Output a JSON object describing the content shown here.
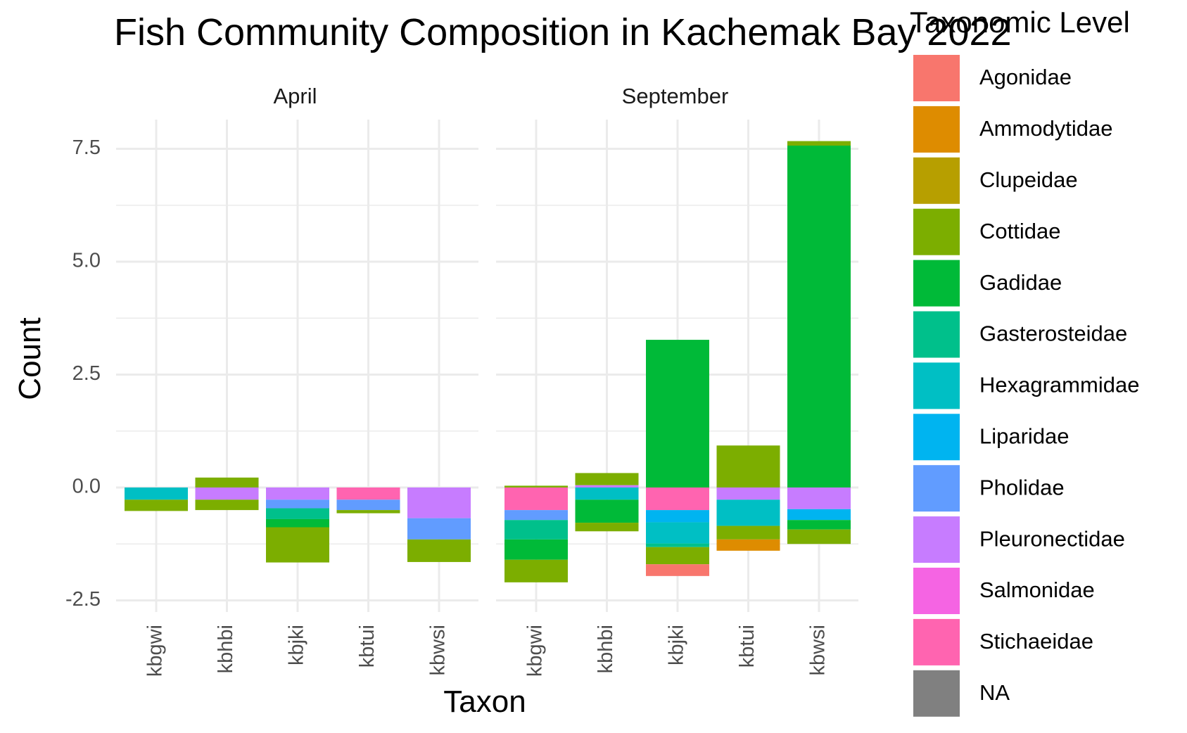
{
  "chart_data": {
    "type": "bar",
    "stacked": true,
    "title": "Fish Community Composition in Kachemak Bay 2022",
    "xlabel": "Taxon",
    "ylabel": "Count",
    "ylim": [
      -2.6,
      8.2
    ],
    "yticks": [
      "-2.5",
      "0.0",
      "2.5",
      "5.0",
      "7.5"
    ],
    "ytick_values": [
      -2.5,
      0,
      2.5,
      5,
      7.5
    ],
    "grid": true,
    "legend": {
      "title": "Taxonomic Level",
      "position": "right"
    },
    "categories": [
      "kbgwi",
      "kbhbi",
      "kbjki",
      "kbtui",
      "kbwsi"
    ],
    "families": [
      {
        "name": "Agonidae",
        "color": "#F8766D"
      },
      {
        "name": "Ammodytidae",
        "color": "#DE8C00"
      },
      {
        "name": "Clupeidae",
        "color": "#B79F00"
      },
      {
        "name": "Cottidae",
        "color": "#7CAE00"
      },
      {
        "name": "Gadidae",
        "color": "#00BA38"
      },
      {
        "name": "Gasterosteidae",
        "color": "#00C08B"
      },
      {
        "name": "Hexagrammidae",
        "color": "#00BFC4"
      },
      {
        "name": "Liparidae",
        "color": "#00B4F0"
      },
      {
        "name": "Pholidae",
        "color": "#619CFF"
      },
      {
        "name": "Pleuronectidae",
        "color": "#C77CFF"
      },
      {
        "name": "Salmonidae",
        "color": "#F564E3"
      },
      {
        "name": "Stichaeidae",
        "color": "#FF64B0"
      },
      {
        "name": "NA",
        "color": "#808080"
      }
    ],
    "panels": [
      {
        "label": "April",
        "bars": [
          {
            "category": "kbgwi",
            "segments": [
              {
                "family": "Hexagrammidae",
                "from": 0,
                "to": -0.27
              },
              {
                "family": "Cottidae",
                "from": -0.27,
                "to": -0.52
              }
            ]
          },
          {
            "category": "kbhbi",
            "segments": [
              {
                "family": "Cottidae",
                "from": 0,
                "to": 0.22
              },
              {
                "family": "Pleuronectidae",
                "from": 0,
                "to": -0.27
              },
              {
                "family": "Cottidae",
                "from": -0.27,
                "to": -0.5
              }
            ]
          },
          {
            "category": "kbjki",
            "segments": [
              {
                "family": "Pleuronectidae",
                "from": 0,
                "to": -0.27
              },
              {
                "family": "Pholidae",
                "from": -0.27,
                "to": -0.46
              },
              {
                "family": "Gasterosteidae",
                "from": -0.46,
                "to": -0.7
              },
              {
                "family": "Gadidae",
                "from": -0.7,
                "to": -0.88
              },
              {
                "family": "Cottidae",
                "from": -0.88,
                "to": -1.66
              }
            ]
          },
          {
            "category": "kbtui",
            "segments": [
              {
                "family": "Stichaeidae",
                "from": 0,
                "to": -0.27
              },
              {
                "family": "Pholidae",
                "from": -0.27,
                "to": -0.5
              },
              {
                "family": "Cottidae",
                "from": -0.5,
                "to": -0.57
              }
            ]
          },
          {
            "category": "kbwsi",
            "segments": [
              {
                "family": "Pleuronectidae",
                "from": 0,
                "to": -0.68
              },
              {
                "family": "Pholidae",
                "from": -0.68,
                "to": -1.15
              },
              {
                "family": "Cottidae",
                "from": -1.15,
                "to": -1.65
              }
            ]
          }
        ]
      },
      {
        "label": "September",
        "bars": [
          {
            "category": "kbgwi",
            "segments": [
              {
                "family": "Cottidae",
                "from": 0,
                "to": 0.04
              },
              {
                "family": "Stichaeidae",
                "from": 0,
                "to": -0.5
              },
              {
                "family": "Pholidae",
                "from": -0.5,
                "to": -0.72
              },
              {
                "family": "Gasterosteidae",
                "from": -0.72,
                "to": -1.15
              },
              {
                "family": "Gadidae",
                "from": -1.15,
                "to": -1.6
              },
              {
                "family": "Cottidae",
                "from": -1.6,
                "to": -2.1
              }
            ]
          },
          {
            "category": "kbhbi",
            "segments": [
              {
                "family": "Cottidae",
                "from": 0.05,
                "to": 0.32
              },
              {
                "family": "Pleuronectidae",
                "from": 0,
                "to": 0.05
              },
              {
                "family": "Hexagrammidae",
                "from": 0,
                "to": -0.27
              },
              {
                "family": "Gadidae",
                "from": -0.27,
                "to": -0.78
              },
              {
                "family": "Cottidae",
                "from": -0.78,
                "to": -0.97
              }
            ]
          },
          {
            "category": "kbjki",
            "segments": [
              {
                "family": "Gadidae",
                "from": 0,
                "to": 3.27
              },
              {
                "family": "Stichaeidae",
                "from": 0,
                "to": -0.5
              },
              {
                "family": "Liparidae",
                "from": -0.5,
                "to": -0.77
              },
              {
                "family": "Hexagrammidae",
                "from": -0.77,
                "to": -1.24
              },
              {
                "family": "Gasterosteidae",
                "from": -1.24,
                "to": -1.32
              },
              {
                "family": "Cottidae",
                "from": -1.32,
                "to": -1.7
              },
              {
                "family": "Agonidae",
                "from": -1.7,
                "to": -1.96
              }
            ]
          },
          {
            "category": "kbtui",
            "segments": [
              {
                "family": "Cottidae",
                "from": 0,
                "to": 0.93
              },
              {
                "family": "Pleuronectidae",
                "from": 0,
                "to": -0.27
              },
              {
                "family": "Hexagrammidae",
                "from": -0.27,
                "to": -0.85
              },
              {
                "family": "Cottidae",
                "from": -0.85,
                "to": -1.15
              },
              {
                "family": "Ammodytidae",
                "from": -1.15,
                "to": -1.4
              }
            ]
          },
          {
            "category": "kbwsi",
            "segments": [
              {
                "family": "Gadidae",
                "from": 0,
                "to": 7.57
              },
              {
                "family": "Cottidae",
                "from": 7.57,
                "to": 7.67
              },
              {
                "family": "Pleuronectidae",
                "from": 0,
                "to": -0.48
              },
              {
                "family": "Liparidae",
                "from": -0.48,
                "to": -0.72
              },
              {
                "family": "Gadidae",
                "from": -0.72,
                "to": -0.93
              },
              {
                "family": "Cottidae",
                "from": -0.93,
                "to": -1.25
              }
            ]
          }
        ]
      }
    ]
  }
}
